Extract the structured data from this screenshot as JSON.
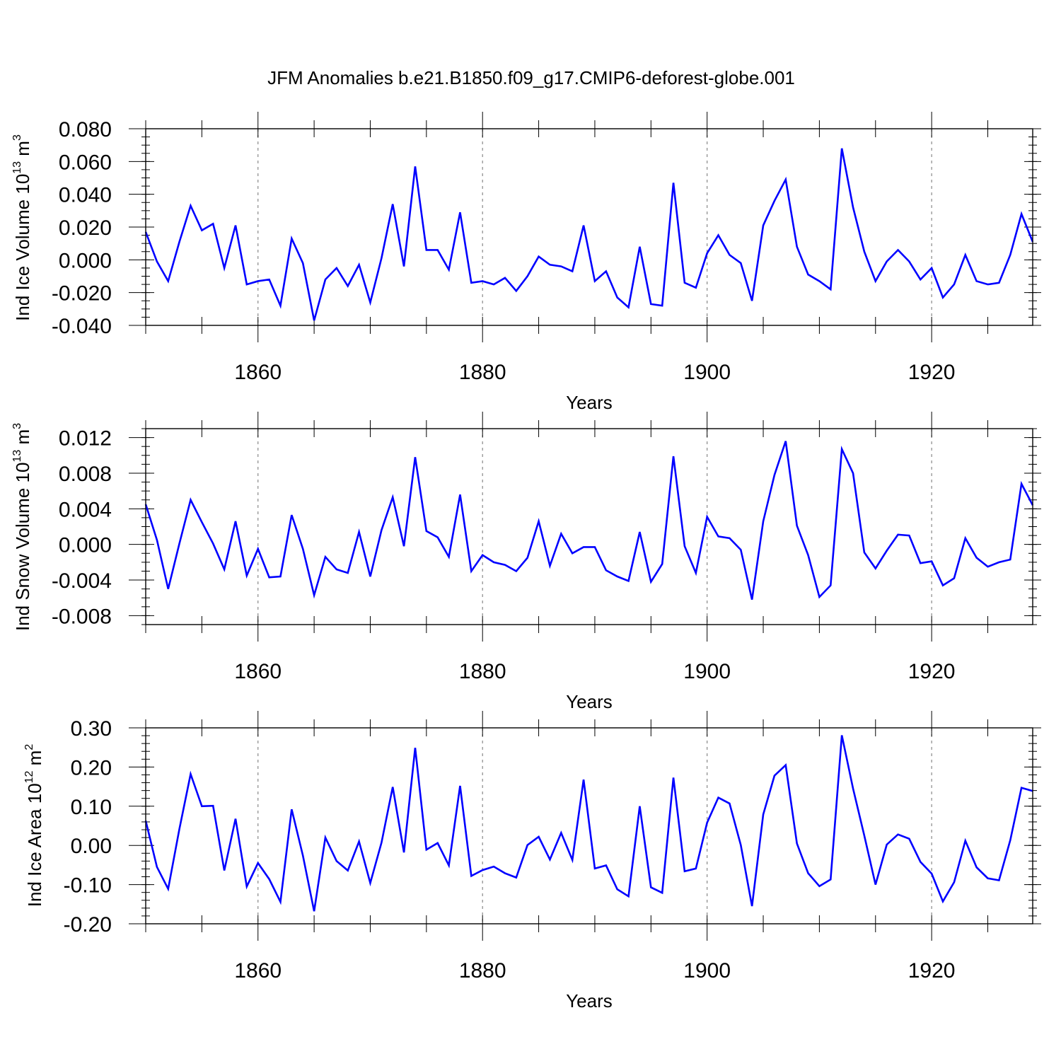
{
  "title": "JFM Anomalies b.e21.B1850.f09_g17.CMIP6-deforest-globe.001",
  "colors": {
    "series": "#0000ff",
    "axis": "#000000",
    "grid": "#888888",
    "background": "#ffffff"
  },
  "chart_data": [
    {
      "type": "line",
      "ylabel_base": "Ind Ice Volume 10",
      "ylabel_exp": "13",
      "ylabel_unit": " m",
      "ylabel_unit_exp": "3",
      "xlabel": "Years",
      "xlim": [
        1850,
        1929
      ],
      "ylim": [
        -0.04,
        0.08
      ],
      "yticks": [
        -0.04,
        -0.02,
        0.0,
        0.02,
        0.04,
        0.06,
        0.08
      ],
      "ytick_labels": [
        "-0.040",
        "-0.020",
        "0.000",
        "0.020",
        "0.040",
        "0.060",
        "0.080"
      ],
      "yminor_step": 0.005,
      "xticks": [
        1860,
        1880,
        1900,
        1920
      ],
      "xtick_labels": [
        "1860",
        "1880",
        "1900",
        "1920"
      ],
      "xminor_step": 5,
      "grid_x": [
        1860,
        1880,
        1900,
        1920
      ],
      "x_start": 1850,
      "values": [
        0.017,
        -0.001,
        -0.013,
        0.011,
        0.033,
        0.018,
        0.022,
        -0.005,
        0.021,
        -0.015,
        -0.013,
        -0.012,
        -0.028,
        0.013,
        -0.002,
        -0.037,
        -0.012,
        -0.005,
        -0.016,
        -0.003,
        -0.026,
        0.001,
        0.034,
        -0.004,
        0.057,
        0.006,
        0.006,
        -0.006,
        0.029,
        -0.014,
        -0.013,
        -0.015,
        -0.011,
        -0.019,
        -0.01,
        0.002,
        -0.003,
        -0.004,
        -0.007,
        0.021,
        -0.013,
        -0.007,
        -0.023,
        -0.029,
        0.008,
        -0.027,
        -0.028,
        0.047,
        -0.014,
        -0.017,
        0.004,
        0.015,
        0.003,
        -0.002,
        -0.025,
        0.021,
        0.036,
        0.049,
        0.008,
        -0.009,
        -0.013,
        -0.018,
        0.068,
        0.032,
        0.005,
        -0.013,
        -0.001,
        0.006,
        -0.001,
        -0.012,
        -0.005,
        -0.023,
        -0.015,
        0.003,
        -0.013,
        -0.015,
        -0.014,
        0.003,
        0.028,
        0.011
      ]
    },
    {
      "type": "line",
      "ylabel_base": "Ind Snow Volume 10",
      "ylabel_exp": "13",
      "ylabel_unit": " m",
      "ylabel_unit_exp": "3",
      "xlabel": "Years",
      "xlim": [
        1850,
        1929
      ],
      "ylim": [
        -0.009,
        0.013
      ],
      "yticks": [
        -0.008,
        -0.004,
        0.0,
        0.004,
        0.008,
        0.012
      ],
      "ytick_labels": [
        "-0.008",
        "-0.004",
        "0.000",
        "0.004",
        "0.008",
        "0.012"
      ],
      "yminor_step": 0.001,
      "xticks": [
        1860,
        1880,
        1900,
        1920
      ],
      "xtick_labels": [
        "1860",
        "1880",
        "1900",
        "1920"
      ],
      "xminor_step": 5,
      "grid_x": [
        1860,
        1880,
        1900,
        1920
      ],
      "x_start": 1850,
      "values": [
        0.0045,
        0.0005,
        -0.005,
        0.0001,
        0.005,
        0.0025,
        0.0001,
        -0.0028,
        0.0026,
        -0.0035,
        -0.0005,
        -0.0037,
        -0.0036,
        0.0033,
        -0.0005,
        -0.0057,
        -0.0014,
        -0.0028,
        -0.0032,
        0.0014,
        -0.0036,
        0.0016,
        0.0053,
        -0.0002,
        0.0098,
        0.0015,
        0.0008,
        -0.0014,
        0.0056,
        -0.003,
        -0.0012,
        -0.002,
        -0.0023,
        -0.003,
        -0.0015,
        0.0026,
        -0.0024,
        0.0012,
        -0.001,
        -0.0003,
        -0.0003,
        -0.0029,
        -0.0036,
        -0.0041,
        0.0014,
        -0.0042,
        -0.0022,
        0.0099,
        -0.0002,
        -0.0032,
        0.0031,
        0.0009,
        0.0007,
        -0.0006,
        -0.0062,
        0.0026,
        0.0078,
        0.0116,
        0.0021,
        -0.0012,
        -0.0059,
        -0.0046,
        0.0107,
        0.008,
        -0.0009,
        -0.0027,
        -0.0007,
        0.0011,
        0.001,
        -0.0021,
        -0.0019,
        -0.0046,
        -0.0038,
        0.0007,
        -0.0015,
        -0.0025,
        -0.002,
        -0.0017,
        0.0068,
        0.0044
      ]
    },
    {
      "type": "line",
      "ylabel_base": "Ind Ice Area 10",
      "ylabel_exp": "12",
      "ylabel_unit": " m",
      "ylabel_unit_exp": "2",
      "xlabel": "Years",
      "xlim": [
        1850,
        1929
      ],
      "ylim": [
        -0.2,
        0.3
      ],
      "yticks": [
        -0.2,
        -0.1,
        0.0,
        0.1,
        0.2,
        0.3
      ],
      "ytick_labels": [
        "-0.20",
        "-0.10",
        "0.00",
        "0.10",
        "0.20",
        "0.30"
      ],
      "yminor_step": 0.02,
      "xticks": [
        1860,
        1880,
        1900,
        1920
      ],
      "xtick_labels": [
        "1860",
        "1880",
        "1900",
        "1920"
      ],
      "xminor_step": 5,
      "grid_x": [
        1860,
        1880,
        1900,
        1920
      ],
      "x_start": 1850,
      "values": [
        0.063,
        -0.055,
        -0.111,
        0.042,
        0.182,
        0.1,
        0.101,
        -0.064,
        0.068,
        -0.105,
        -0.045,
        -0.086,
        -0.144,
        0.092,
        -0.026,
        -0.168,
        0.02,
        -0.04,
        -0.064,
        0.01,
        -0.096,
        0.007,
        0.149,
        -0.018,
        0.249,
        -0.011,
        0.006,
        -0.051,
        0.152,
        -0.078,
        -0.063,
        -0.054,
        -0.071,
        -0.082,
        0.001,
        0.022,
        -0.036,
        0.032,
        -0.037,
        0.168,
        -0.059,
        -0.051,
        -0.112,
        -0.13,
        0.1,
        -0.107,
        -0.121,
        0.173,
        -0.066,
        -0.059,
        0.058,
        0.122,
        0.107,
        0.001,
        -0.155,
        0.079,
        0.178,
        0.205,
        0.005,
        -0.071,
        -0.104,
        -0.087,
        0.281,
        0.145,
        0.025,
        -0.1,
        0.002,
        0.028,
        0.017,
        -0.042,
        -0.072,
        -0.143,
        -0.094,
        0.012,
        -0.056,
        -0.084,
        -0.089,
        0.013,
        0.147,
        0.139
      ]
    }
  ]
}
